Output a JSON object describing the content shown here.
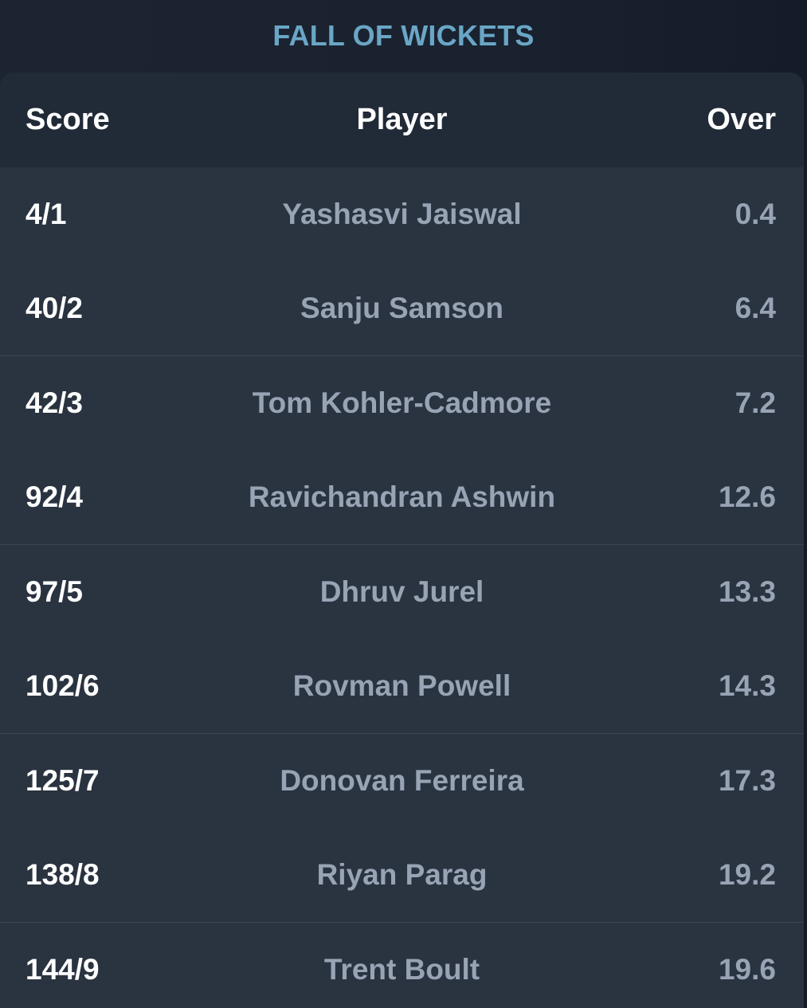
{
  "title": "FALL OF WICKETS",
  "headers": {
    "score": "Score",
    "player": "Player",
    "over": "Over"
  },
  "rows": [
    {
      "score": "4/1",
      "player": "Yashasvi Jaiswal",
      "over": "0.4"
    },
    {
      "score": "40/2",
      "player": "Sanju Samson",
      "over": "6.4"
    },
    {
      "score": "42/3",
      "player": "Tom Kohler-Cadmore",
      "over": "7.2"
    },
    {
      "score": "92/4",
      "player": "Ravichandran Ashwin",
      "over": "12.6"
    },
    {
      "score": "97/5",
      "player": "Dhruv Jurel",
      "over": "13.3"
    },
    {
      "score": "102/6",
      "player": "Rovman Powell",
      "over": "14.3"
    },
    {
      "score": "125/7",
      "player": "Donovan Ferreira",
      "over": "17.3"
    },
    {
      "score": "138/8",
      "player": "Riyan Parag",
      "over": "19.2"
    },
    {
      "score": "144/9",
      "player": "Trent Boult",
      "over": "19.6"
    }
  ],
  "colors": {
    "title": "#6aa6c6",
    "header_bg": "#212a37",
    "card_bg": "#2a3340",
    "score_text": "#ffffff",
    "muted_text": "#98a3b4"
  }
}
